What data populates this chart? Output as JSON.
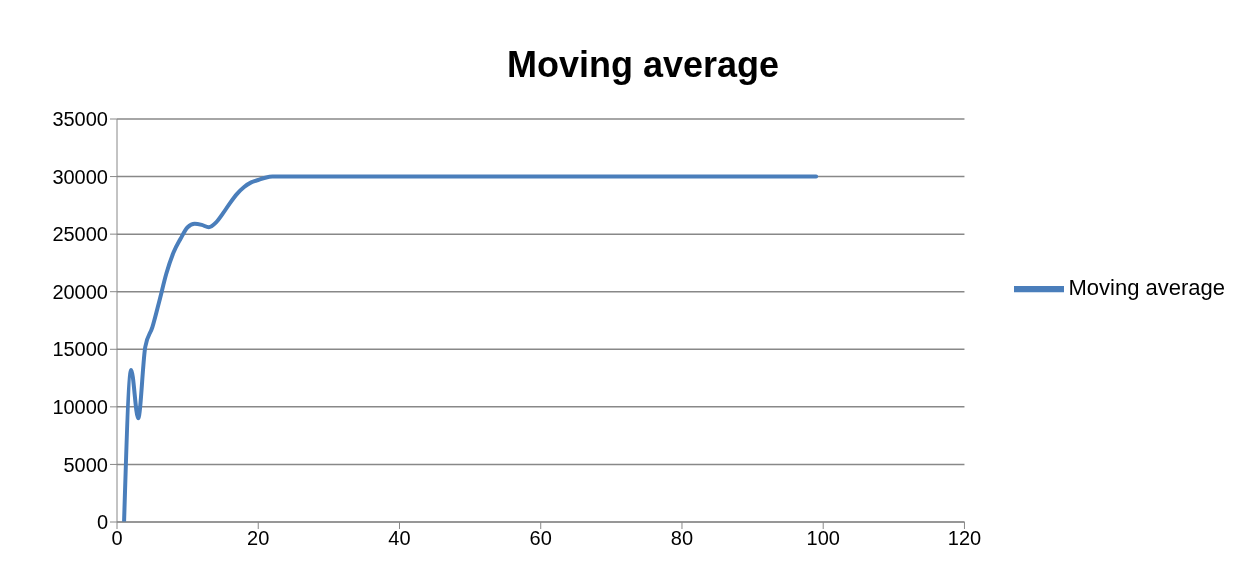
{
  "chart_data": {
    "type": "line",
    "title": "Moving average",
    "x": [
      1,
      2,
      3,
      4,
      5,
      6,
      7,
      8,
      9,
      10,
      11,
      12,
      13,
      14,
      15,
      16,
      17,
      18,
      19,
      20,
      21,
      22,
      30,
      40,
      50,
      60,
      70,
      80,
      90,
      99
    ],
    "series": [
      {
        "name": "Moving average",
        "color": "#4a7ebb",
        "values": [
          0,
          13200,
          9000,
          15200,
          16900,
          19200,
          21600,
          23400,
          24600,
          25600,
          25900,
          25800,
          25600,
          26000,
          26800,
          27700,
          28500,
          29100,
          29500,
          29700,
          29900,
          30000,
          30000,
          30000,
          30000,
          30000,
          30000,
          30000,
          30000,
          30000
        ]
      }
    ],
    "xlim": [
      0,
      120
    ],
    "xticks": [
      0,
      20,
      40,
      60,
      80,
      100,
      120
    ],
    "ylim": [
      0,
      35000
    ],
    "yticks": [
      0,
      5000,
      10000,
      15000,
      20000,
      25000,
      30000,
      35000
    ],
    "grid": "y",
    "legend": "right",
    "marker": "none",
    "line_style": "solid"
  }
}
